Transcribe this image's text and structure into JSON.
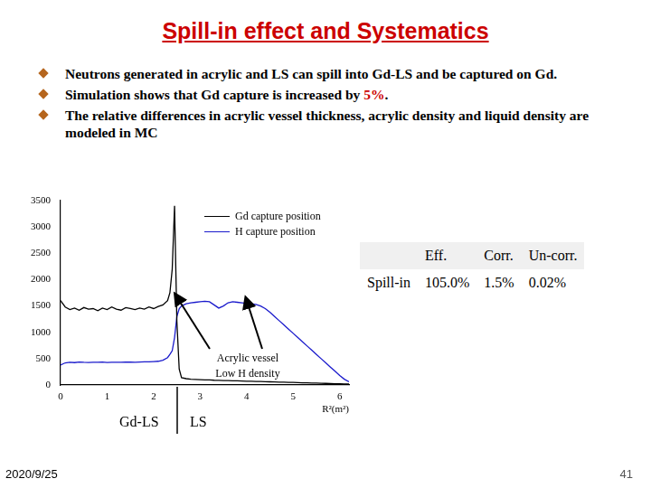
{
  "slide": {
    "title": "Spill-in effect and Systematics",
    "bullets": [
      [
        {
          "text": "Neutrons generated in acrylic and LS can spill into Gd-LS and be captured on Gd."
        }
      ],
      [
        {
          "text": "Simulation shows that Gd capture is increased by "
        },
        {
          "text": "5%",
          "highlight": true
        },
        {
          "text": "."
        }
      ],
      [
        {
          "text": "The relative differences in acrylic vessel thickness, acrylic density and liquid density are modeled in MC"
        }
      ]
    ],
    "table": {
      "header": [
        "",
        "Eff.",
        "Corr.",
        "Un-corr."
      ],
      "rows": [
        [
          "Spill-in",
          "105.0%",
          "1.5%",
          "0.02%"
        ]
      ]
    },
    "date": "2020/9/25",
    "page": "41"
  },
  "chart_data": {
    "type": "line",
    "x_label": "R²(m²)",
    "annotations": [
      "Acrylic vessel",
      "Low H density"
    ],
    "region_labels": [
      "Gd-LS",
      "LS"
    ],
    "x": [
      0.0,
      0.1,
      0.2,
      0.3,
      0.4,
      0.5,
      0.6,
      0.7,
      0.8,
      0.9,
      1.0,
      1.1,
      1.2,
      1.3,
      1.4,
      1.5,
      1.6,
      1.7,
      1.8,
      1.9,
      2.0,
      2.1,
      2.2,
      2.3,
      2.35,
      2.4,
      2.45,
      2.5,
      2.55,
      2.6,
      2.7,
      2.8,
      2.9,
      3.0,
      3.1,
      3.2,
      3.3,
      3.4,
      3.5,
      3.6,
      3.7,
      3.8,
      3.9,
      4.0,
      4.1,
      4.2,
      4.3,
      4.4,
      4.5,
      4.6,
      4.7,
      4.8,
      4.9,
      5.0,
      5.1,
      5.2,
      5.3,
      5.4,
      5.5,
      5.6,
      5.7,
      5.8,
      5.9,
      6.0,
      6.1,
      6.2
    ],
    "series": [
      {
        "name": "Gd capture position",
        "color": "#000000",
        "values": [
          1600,
          1480,
          1430,
          1460,
          1420,
          1470,
          1440,
          1450,
          1410,
          1460,
          1430,
          1480,
          1440,
          1420,
          1470,
          1450,
          1430,
          1460,
          1440,
          1480,
          1450,
          1490,
          1520,
          1600,
          1750,
          2200,
          3400,
          1200,
          300,
          140,
          120,
          110,
          105,
          100,
          95,
          95,
          90,
          88,
          85,
          82,
          80,
          78,
          75,
          72,
          70,
          68,
          65,
          62,
          60,
          58,
          55,
          52,
          50,
          48,
          45,
          42,
          40,
          38,
          35,
          32,
          30,
          28,
          25,
          22,
          20,
          18
        ]
      },
      {
        "name": "H capture position",
        "color": "#1a1acc",
        "values": [
          380,
          420,
          430,
          425,
          435,
          430,
          428,
          432,
          430,
          435,
          428,
          430,
          432,
          430,
          435,
          433,
          430,
          435,
          438,
          440,
          445,
          450,
          470,
          520,
          580,
          650,
          900,
          1300,
          1450,
          1500,
          1540,
          1560,
          1570,
          1580,
          1590,
          1580,
          1520,
          1460,
          1500,
          1560,
          1580,
          1570,
          1560,
          1550,
          1540,
          1530,
          1500,
          1450,
          1380,
          1300,
          1220,
          1140,
          1060,
          980,
          900,
          820,
          740,
          660,
          580,
          500,
          420,
          340,
          260,
          180,
          110,
          60
        ]
      }
    ],
    "xlim": [
      0,
      6.2
    ],
    "xticks": [
      0,
      1,
      2,
      3,
      4,
      5,
      6
    ],
    "ylim": [
      0,
      3500
    ],
    "yticks": [
      0,
      500,
      1000,
      1500,
      2000,
      2500,
      3000,
      3500
    ],
    "grid": false,
    "legend": "top-right"
  }
}
